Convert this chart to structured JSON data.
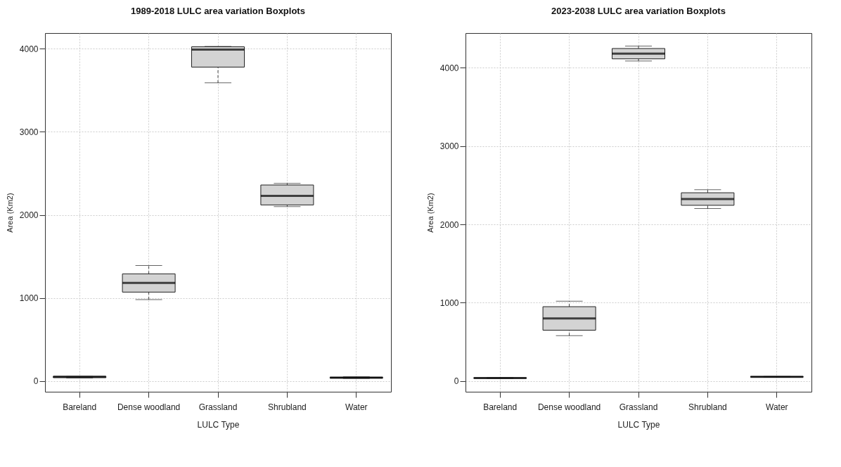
{
  "chart_data": [
    {
      "type": "box",
      "title": "1989-2018 LULC area variation Boxplots",
      "xlabel": "LULC Type",
      "ylabel": "Area (Km2)",
      "categories": [
        "Bareland",
        "Dense woodland",
        "Grassland",
        "Shrubland",
        "Water"
      ],
      "color": "#d3d3d3",
      "grid": true,
      "ylim": [
        -130,
        4190
      ],
      "yticks": [
        0,
        1000,
        2000,
        3000,
        4000
      ],
      "boxes": [
        {
          "low": 35,
          "q1": 40,
          "median": 50,
          "q3": 55,
          "high": 55
        },
        {
          "low": 980,
          "q1": 1070,
          "median": 1180,
          "q3": 1290,
          "high": 1390
        },
        {
          "low": 3590,
          "q1": 3780,
          "median": 3990,
          "q3": 4025,
          "high": 4030
        },
        {
          "low": 2100,
          "q1": 2120,
          "median": 2230,
          "q3": 2360,
          "high": 2380
        },
        {
          "low": 30,
          "q1": 35,
          "median": 40,
          "q3": 45,
          "high": 50
        }
      ]
    },
    {
      "type": "box",
      "title": "2023-2038 LULC area variation Boxplots",
      "xlabel": "LULC Type",
      "ylabel": "Area (Km2)",
      "categories": [
        "Bareland",
        "Dense woodland",
        "Grassland",
        "Shrubland",
        "Water"
      ],
      "color": "#d3d3d3",
      "grid": true,
      "ylim": [
        -135,
        4440
      ],
      "yticks": [
        0,
        1000,
        2000,
        3000,
        4000
      ],
      "boxes": [
        {
          "low": 35,
          "q1": 38,
          "median": 40,
          "q3": 42,
          "high": 45
        },
        {
          "low": 580,
          "q1": 650,
          "median": 800,
          "q3": 950,
          "high": 1020
        },
        {
          "low": 4083,
          "q1": 4111,
          "median": 4177,
          "q3": 4243,
          "high": 4274
        },
        {
          "low": 2201,
          "q1": 2243,
          "median": 2323,
          "q3": 2403,
          "high": 2441
        },
        {
          "low": 50,
          "q1": 52,
          "median": 55,
          "q3": 58,
          "high": 60
        }
      ]
    }
  ]
}
